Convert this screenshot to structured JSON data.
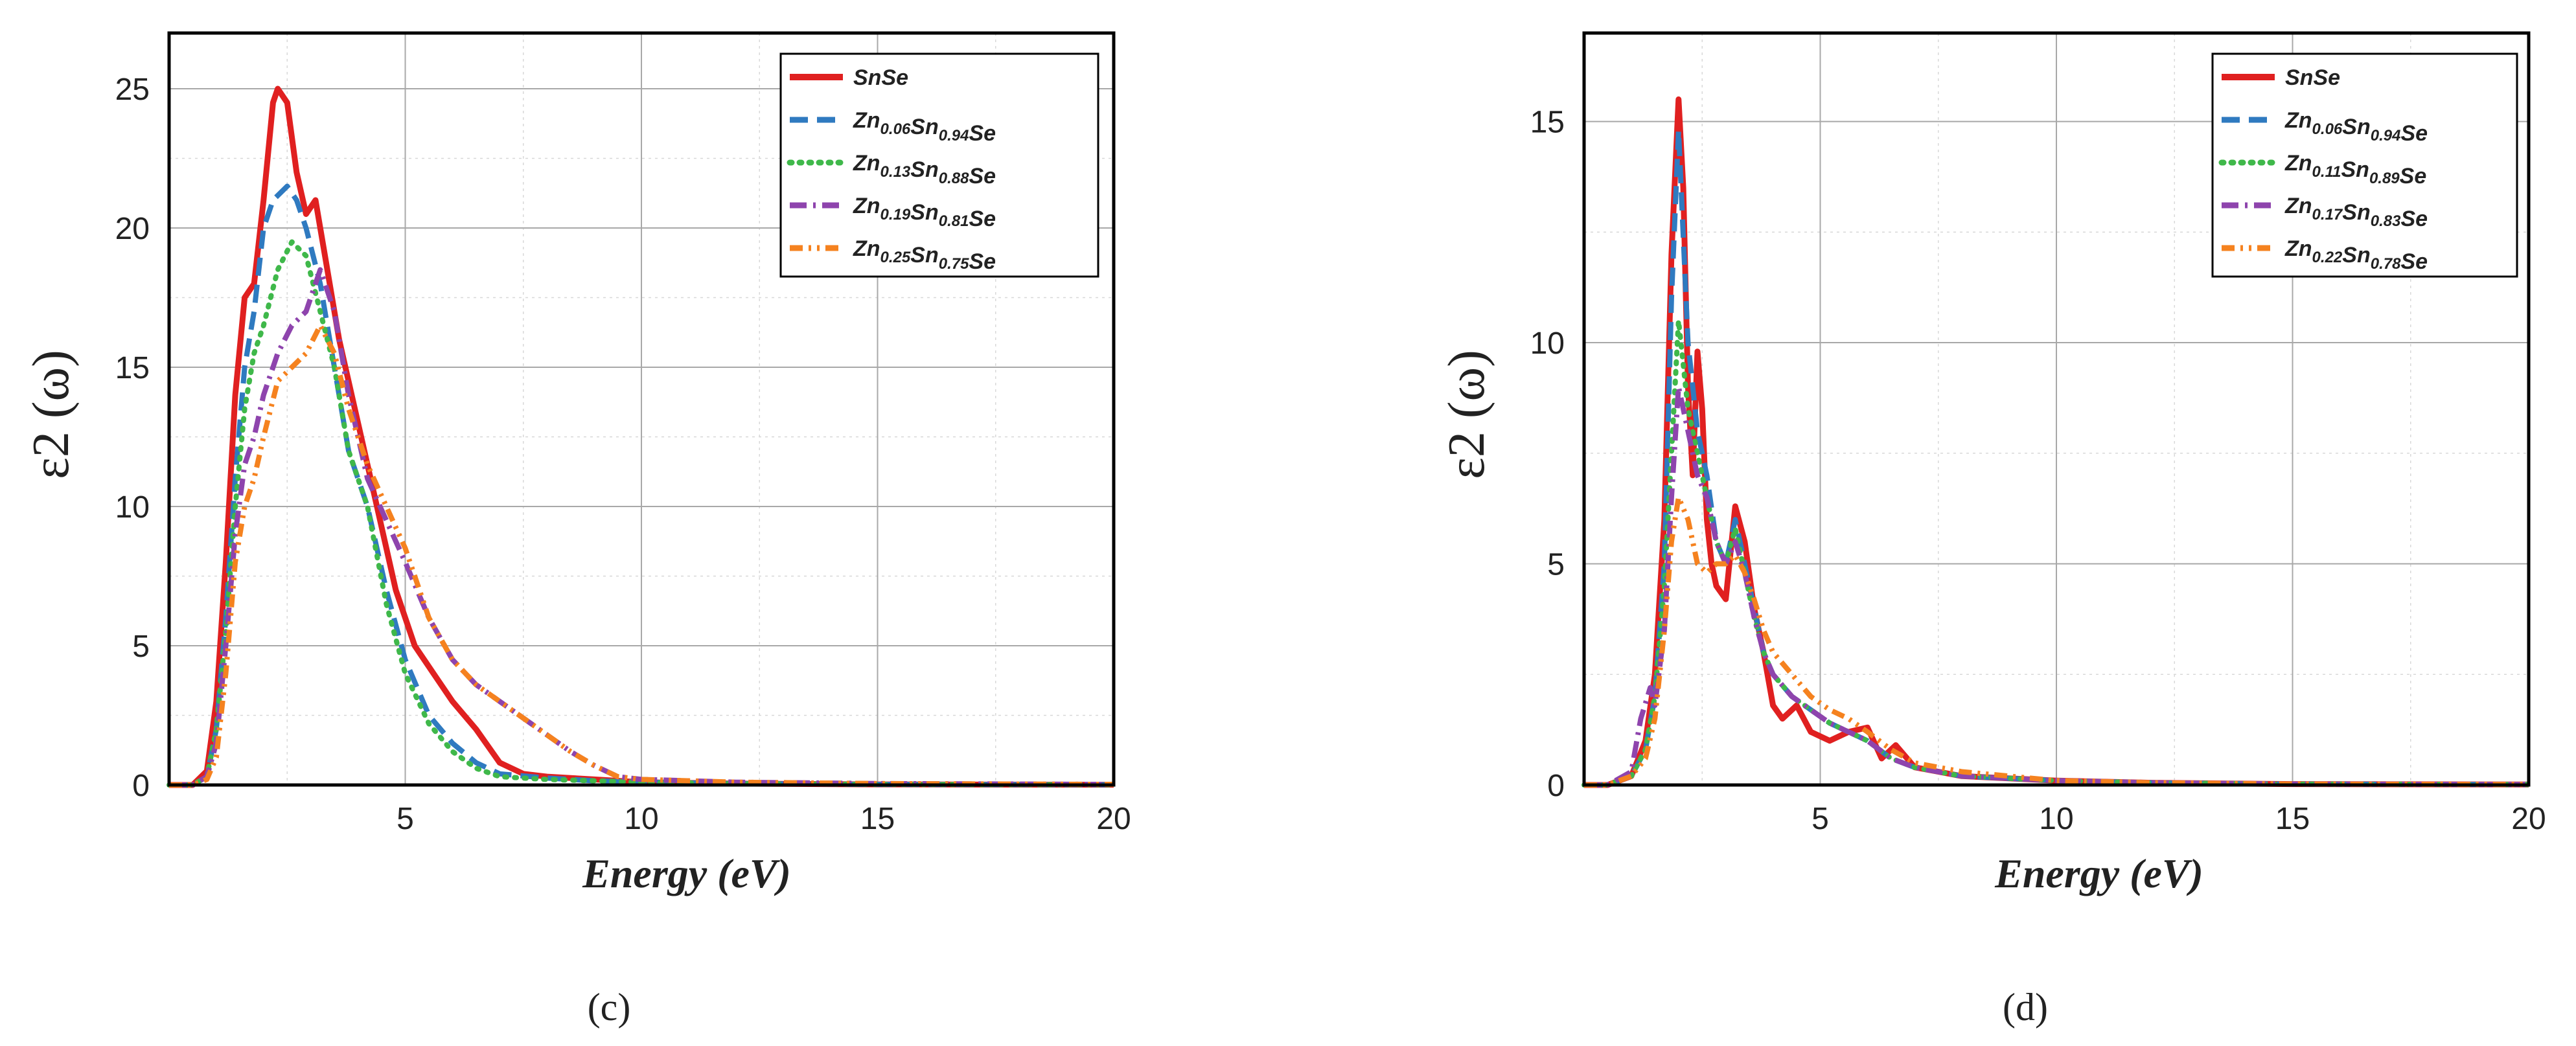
{
  "chart_data": [
    {
      "type": "line",
      "panel_label": "(c)",
      "xlabel": "Energy (eV)",
      "ylabel": "ε2 (ω)",
      "xlim": [
        0,
        20
      ],
      "ylim": [
        0,
        27
      ],
      "x_ticks": [
        5,
        10,
        15,
        20
      ],
      "y_ticks": [
        0,
        5,
        10,
        15,
        20,
        25
      ],
      "x_tick_labels": [
        "5",
        "10",
        "15",
        "20"
      ],
      "y_tick_labels": [
        "0",
        "5",
        "10",
        "15",
        "20",
        "25"
      ],
      "grid": true,
      "legend_position": "top-right",
      "series": [
        {
          "name": "SnSe",
          "label_parts": [
            [
              "SnSe",
              ""
            ]
          ],
          "color": "#e02020",
          "style": "solid",
          "x": [
            0,
            0.5,
            0.8,
            1.0,
            1.2,
            1.4,
            1.6,
            1.8,
            2.0,
            2.2,
            2.3,
            2.5,
            2.7,
            2.9,
            3.1,
            3.3,
            3.6,
            4.0,
            4.4,
            4.8,
            5.2,
            5.6,
            6.0,
            6.5,
            7.0,
            7.5,
            8,
            9,
            10,
            12,
            15,
            20
          ],
          "y": [
            0,
            0,
            0.5,
            3.0,
            8.0,
            14.0,
            17.5,
            18.0,
            21.0,
            24.5,
            25.0,
            24.5,
            22.0,
            20.5,
            21.0,
            19.0,
            16.0,
            13.0,
            10.0,
            7.0,
            5.0,
            4.0,
            3.0,
            2.0,
            0.8,
            0.4,
            0.3,
            0.2,
            0.1,
            0.05,
            0.02,
            0.01
          ]
        },
        {
          "name": "Zn0.06Sn0.94Se",
          "label_parts": [
            [
              "Zn",
              "0.06"
            ],
            [
              "Sn",
              "0.94"
            ],
            [
              "Se",
              ""
            ]
          ],
          "color": "#2f7ac0",
          "style": "dash",
          "x": [
            0,
            0.5,
            0.8,
            1.0,
            1.2,
            1.4,
            1.6,
            1.8,
            2.0,
            2.2,
            2.5,
            2.7,
            2.9,
            3.2,
            3.5,
            3.8,
            4.2,
            4.6,
            5.0,
            5.5,
            6.0,
            6.5,
            7.0,
            8,
            9,
            10,
            12,
            15,
            20
          ],
          "y": [
            0,
            0,
            0.3,
            2.0,
            6.0,
            11.0,
            15.0,
            17.0,
            20.0,
            21.0,
            21.5,
            21.0,
            20.0,
            18.0,
            15.0,
            12.0,
            10.0,
            7.0,
            4.5,
            2.5,
            1.5,
            0.8,
            0.4,
            0.25,
            0.15,
            0.1,
            0.05,
            0.02,
            0.01
          ]
        },
        {
          "name": "Zn0.13Sn0.88Se",
          "label_parts": [
            [
              "Zn",
              "0.13"
            ],
            [
              "Sn",
              "0.88"
            ],
            [
              "Se",
              ""
            ]
          ],
          "color": "#3fb84a",
          "style": "dot",
          "x": [
            0,
            0.5,
            0.8,
            1.0,
            1.2,
            1.4,
            1.6,
            1.8,
            2.0,
            2.3,
            2.6,
            2.9,
            3.2,
            3.5,
            3.8,
            4.2,
            4.6,
            5.0,
            5.5,
            6.0,
            6.5,
            7.0,
            8,
            9,
            10,
            12,
            15,
            20
          ],
          "y": [
            0,
            0,
            0.3,
            2.0,
            5.5,
            10.0,
            13.5,
            15.5,
            16.5,
            18.5,
            19.5,
            19.0,
            17.0,
            15.0,
            12.0,
            10.0,
            6.5,
            4.0,
            2.2,
            1.2,
            0.6,
            0.3,
            0.2,
            0.15,
            0.1,
            0.05,
            0.02,
            0.01
          ]
        },
        {
          "name": "Zn0.19Sn0.81Se",
          "label_parts": [
            [
              "Zn",
              "0.19"
            ],
            [
              "Sn",
              "0.81"
            ],
            [
              "Se",
              ""
            ]
          ],
          "color": "#8e44ad",
          "style": "dashdot",
          "x": [
            0,
            0.5,
            0.8,
            1.0,
            1.2,
            1.4,
            1.6,
            1.8,
            2.0,
            2.3,
            2.6,
            2.9,
            3.2,
            3.5,
            3.8,
            4.2,
            4.6,
            5.0,
            5.5,
            6.0,
            6.5,
            7.0,
            7.5,
            8.0,
            8.5,
            9.0,
            9.5,
            10,
            12,
            15,
            20
          ],
          "y": [
            0,
            0,
            0.3,
            1.5,
            5.0,
            9.0,
            11.5,
            12.5,
            14.0,
            15.5,
            16.5,
            17.0,
            18.5,
            17.0,
            14.0,
            11.0,
            9.5,
            8.0,
            6.0,
            4.5,
            3.6,
            3.0,
            2.4,
            1.8,
            1.2,
            0.7,
            0.3,
            0.2,
            0.1,
            0.05,
            0.02
          ]
        },
        {
          "name": "Zn0.25Sn0.75Se",
          "label_parts": [
            [
              "Zn",
              "0.25"
            ],
            [
              "Sn",
              "0.75"
            ],
            [
              "Se",
              ""
            ]
          ],
          "color": "#f5821f",
          "style": "dashdotdot",
          "x": [
            0,
            0.5,
            0.8,
            1.0,
            1.2,
            1.4,
            1.6,
            1.8,
            2.0,
            2.3,
            2.6,
            2.9,
            3.2,
            3.5,
            3.8,
            4.2,
            4.6,
            5.0,
            5.5,
            6.0,
            6.5,
            7.0,
            7.5,
            8.0,
            8.5,
            9.0,
            9.5,
            10,
            12,
            15,
            20
          ],
          "y": [
            0,
            0,
            0.2,
            1.0,
            4.0,
            8.0,
            10.0,
            11.0,
            12.5,
            14.5,
            15.0,
            15.5,
            16.5,
            15.5,
            13.5,
            11.5,
            10.0,
            8.5,
            6.0,
            4.5,
            3.6,
            3.0,
            2.4,
            1.8,
            1.2,
            0.7,
            0.3,
            0.2,
            0.1,
            0.05,
            0.02
          ]
        }
      ]
    },
    {
      "type": "line",
      "panel_label": "(d)",
      "xlabel": "Energy (eV)",
      "ylabel": "ε2 (ω)",
      "xlim": [
        0,
        20
      ],
      "ylim": [
        0,
        17
      ],
      "x_ticks": [
        5,
        10,
        15,
        20
      ],
      "y_ticks": [
        0,
        5,
        10,
        15
      ],
      "x_tick_labels": [
        "5",
        "10",
        "15",
        "20"
      ],
      "y_tick_labels": [
        "0",
        "5",
        "10",
        "15"
      ],
      "grid": true,
      "legend_position": "top-right",
      "series": [
        {
          "name": "SnSe",
          "label_parts": [
            [
              "SnSe",
              ""
            ]
          ],
          "color": "#e02020",
          "style": "solid",
          "x": [
            0,
            0.5,
            1.0,
            1.3,
            1.5,
            1.7,
            1.85,
            2.0,
            2.1,
            2.2,
            2.3,
            2.4,
            2.5,
            2.6,
            2.7,
            2.8,
            3.0,
            3.2,
            3.4,
            3.6,
            3.8,
            4.0,
            4.2,
            4.5,
            4.8,
            5.2,
            5.6,
            6.0,
            6.3,
            6.6,
            7.0,
            7.5,
            8.0,
            9.0,
            10,
            12,
            15,
            20
          ],
          "y": [
            0,
            0,
            0.2,
            1.0,
            2.5,
            6.0,
            12.0,
            15.5,
            13.5,
            9.0,
            7.0,
            9.8,
            8.5,
            6.0,
            5.0,
            4.5,
            4.2,
            6.3,
            5.5,
            4.0,
            3.0,
            1.8,
            1.5,
            1.8,
            1.2,
            1.0,
            1.2,
            1.3,
            0.6,
            0.9,
            0.4,
            0.3,
            0.2,
            0.15,
            0.1,
            0.05,
            0.02,
            0.01
          ]
        },
        {
          "name": "Zn0.06Sn0.94Se",
          "label_parts": [
            [
              "Zn",
              "0.06"
            ],
            [
              "Sn",
              "0.94"
            ],
            [
              "Se",
              ""
            ]
          ],
          "color": "#2f7ac0",
          "style": "dash",
          "x": [
            0,
            0.5,
            1.0,
            1.3,
            1.5,
            1.7,
            1.85,
            2.0,
            2.2,
            2.4,
            2.6,
            2.8,
            3.0,
            3.2,
            3.4,
            3.6,
            3.8,
            4.0,
            4.4,
            4.8,
            5.2,
            5.6,
            6.0,
            6.5,
            7.0,
            8.0,
            9.0,
            10,
            12,
            15,
            20
          ],
          "y": [
            0,
            0,
            0.2,
            0.8,
            2.0,
            5.0,
            11.0,
            14.8,
            10.0,
            8.0,
            7.0,
            5.5,
            5.0,
            6.0,
            5.0,
            4.0,
            3.0,
            2.5,
            2.0,
            1.7,
            1.4,
            1.2,
            1.0,
            0.6,
            0.4,
            0.2,
            0.15,
            0.1,
            0.05,
            0.02,
            0.01
          ]
        },
        {
          "name": "Zn0.11Sn0.89Se",
          "label_parts": [
            [
              "Zn",
              "0.11"
            ],
            [
              "Sn",
              "0.89"
            ],
            [
              "Se",
              ""
            ]
          ],
          "color": "#3fb84a",
          "style": "dot",
          "x": [
            0,
            0.5,
            1.0,
            1.3,
            1.5,
            1.7,
            1.85,
            2.0,
            2.2,
            2.4,
            2.6,
            2.8,
            3.0,
            3.2,
            3.4,
            3.6,
            3.8,
            4.0,
            4.4,
            4.8,
            5.2,
            5.6,
            6.0,
            6.5,
            7.0,
            8.0,
            9.0,
            10,
            12,
            15,
            20
          ],
          "y": [
            0,
            0,
            0.2,
            0.8,
            2.0,
            4.5,
            7.5,
            10.5,
            8.5,
            7.5,
            6.5,
            5.5,
            5.0,
            5.8,
            4.8,
            3.8,
            3.0,
            2.5,
            2.0,
            1.7,
            1.4,
            1.2,
            1.0,
            0.6,
            0.4,
            0.2,
            0.15,
            0.1,
            0.05,
            0.02,
            0.01
          ]
        },
        {
          "name": "Zn0.17Sn0.83Se",
          "label_parts": [
            [
              "Zn",
              "0.17"
            ],
            [
              "Sn",
              "0.83"
            ],
            [
              "Se",
              ""
            ]
          ],
          "color": "#8e44ad",
          "style": "dashdot",
          "x": [
            0,
            0.5,
            1.0,
            1.2,
            1.4,
            1.5,
            1.7,
            1.85,
            2.0,
            2.2,
            2.4,
            2.6,
            2.8,
            3.0,
            3.2,
            3.4,
            3.6,
            3.8,
            4.0,
            4.4,
            4.8,
            5.2,
            5.6,
            6.0,
            6.5,
            7.0,
            8.0,
            9.0,
            10,
            12,
            15,
            20
          ],
          "y": [
            0,
            0,
            0.3,
            1.5,
            2.2,
            1.8,
            3.5,
            6.5,
            9.0,
            8.0,
            7.0,
            6.5,
            5.5,
            5.0,
            5.5,
            4.8,
            3.8,
            3.0,
            2.5,
            2.0,
            1.7,
            1.4,
            1.2,
            1.0,
            0.6,
            0.4,
            0.2,
            0.15,
            0.1,
            0.05,
            0.02,
            0.01
          ]
        },
        {
          "name": "Zn0.22Sn0.78Se",
          "label_parts": [
            [
              "Zn",
              "0.22"
            ],
            [
              "Sn",
              "0.78"
            ],
            [
              "Se",
              ""
            ]
          ],
          "color": "#f5821f",
          "style": "dashdotdot",
          "x": [
            0,
            0.5,
            1.0,
            1.3,
            1.5,
            1.7,
            1.85,
            2.0,
            2.2,
            2.4,
            2.6,
            2.8,
            3.0,
            3.2,
            3.4,
            3.6,
            3.8,
            4.0,
            4.4,
            4.8,
            5.2,
            5.6,
            6.0,
            6.5,
            7.0,
            8.0,
            9.0,
            10,
            12,
            15,
            20
          ],
          "y": [
            0,
            0,
            0.2,
            0.6,
            1.5,
            3.5,
            5.5,
            6.5,
            6.0,
            5.0,
            4.8,
            5.0,
            5.0,
            5.2,
            4.8,
            4.2,
            3.5,
            3.0,
            2.5,
            2.0,
            1.7,
            1.5,
            1.2,
            0.8,
            0.5,
            0.3,
            0.2,
            0.1,
            0.05,
            0.02,
            0.01
          ]
        }
      ]
    }
  ]
}
